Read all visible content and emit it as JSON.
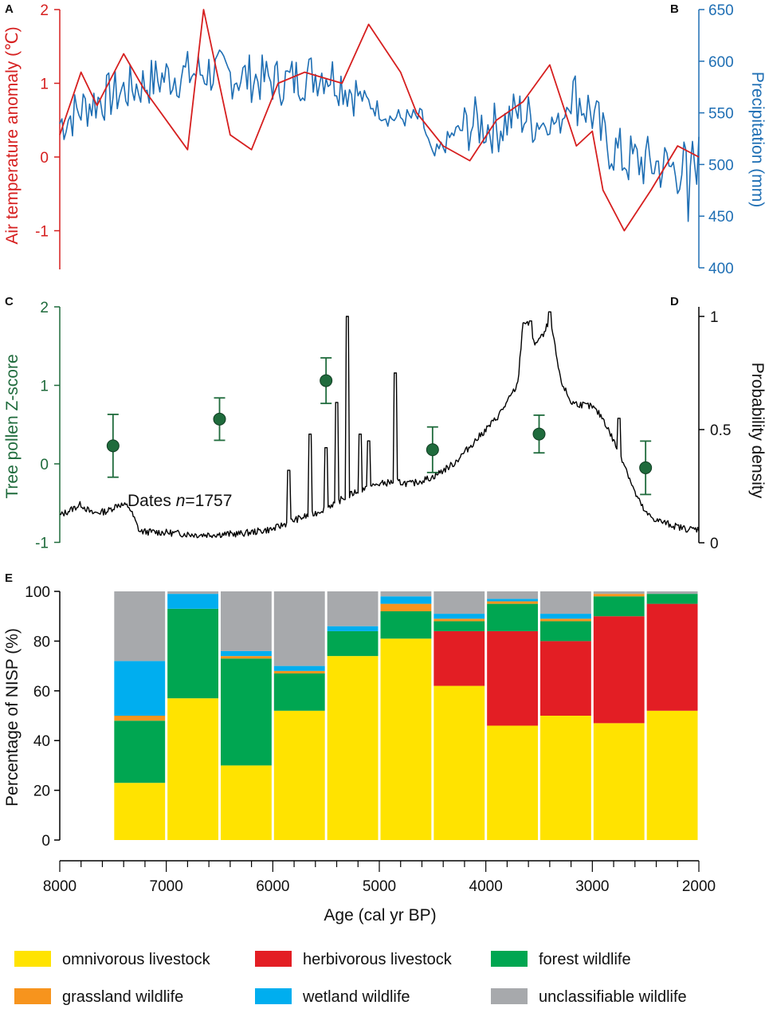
{
  "colors": {
    "temperature": "#d61f1f",
    "precipitation": "#1f6fb4",
    "pollen": "#1f6b3c",
    "density": "#000000",
    "omnivorous": "#ffe300",
    "herbivorous": "#e31e24",
    "forest": "#00a651",
    "grassland": "#f7941d",
    "wetland": "#00aeef",
    "unclassifiable": "#a7a9ac"
  },
  "chart_data": [
    {
      "panel": "A",
      "type": "line",
      "ylabel": "Air temperature anomaly (℃)",
      "ylim": [
        -1.5,
        2
      ],
      "yticks": [
        "-1",
        "0",
        "1",
        "2"
      ],
      "xlim": [
        8000,
        2000
      ],
      "x": [
        8000,
        7800,
        7650,
        7400,
        7200,
        6800,
        6650,
        6400,
        6200,
        5950,
        5700,
        5350,
        5100,
        4800,
        4650,
        4400,
        4150,
        3900,
        3650,
        3400,
        3150,
        3000,
        2900,
        2700,
        2450,
        2200,
        2000
      ],
      "y": [
        0.3,
        1.15,
        0.7,
        1.4,
        0.9,
        0.1,
        2.0,
        0.3,
        0.1,
        1.0,
        1.15,
        1.0,
        1.8,
        1.15,
        0.6,
        0.15,
        -0.05,
        0.5,
        0.75,
        1.25,
        0.15,
        0.35,
        -0.45,
        -1.0,
        -0.45,
        0.15,
        0.0
      ]
    },
    {
      "panel": "B",
      "type": "line",
      "ylabel": "Precipitation (mm)",
      "ylim": [
        400,
        650
      ],
      "yticks": [
        "400",
        "450",
        "500",
        "550",
        "600",
        "650"
      ],
      "xlim": [
        8000,
        2000
      ]
    },
    {
      "panel": "C",
      "type": "scatter",
      "ylabel": "Tree pollen Z-score",
      "ylim": [
        -1,
        2
      ],
      "yticks": [
        "-1",
        "0",
        "1",
        "2"
      ],
      "xlim": [
        8000,
        2000
      ],
      "x": [
        7500,
        6500,
        5500,
        4500,
        3500,
        2500
      ],
      "y": [
        0.23,
        0.57,
        1.06,
        0.18,
        0.38,
        -0.05
      ],
      "error": [
        0.4,
        0.27,
        0.29,
        0.29,
        0.24,
        0.34
      ]
    },
    {
      "panel": "D",
      "type": "line",
      "ylabel": "Probability density",
      "ylim": [
        0,
        1.05
      ],
      "yticks": [
        "0",
        "0.5",
        "1"
      ],
      "annotation_prefix": "Dates ",
      "annotation_n": "n",
      "annotation_value": "=1757",
      "xlim": [
        8000,
        2000
      ]
    },
    {
      "panel": "E",
      "type": "bar",
      "stacked": true,
      "ylabel": "Percentage of NISP (%)",
      "xlabel": "Age (cal yr BP)",
      "ylim": [
        0,
        100
      ],
      "yticks": [
        "0",
        "20",
        "40",
        "60",
        "80",
        "100"
      ],
      "xticks": [
        "8000",
        "7000",
        "6000",
        "5000",
        "4000",
        "3000",
        "2000"
      ],
      "categories": [
        "7500-7000",
        "7000-6500",
        "6500-6000",
        "6000-5500",
        "5500-5000",
        "5000-4500",
        "4500-4000",
        "4000-3500",
        "3500-3000",
        "3000-2500",
        "2500-2000"
      ],
      "series": [
        {
          "name": "omnivorous livestock",
          "values": [
            23,
            57,
            30,
            52,
            74,
            81,
            62,
            46,
            50,
            47,
            52
          ]
        },
        {
          "name": "herbivorous livestock",
          "values": [
            0,
            0,
            0,
            0,
            0,
            0,
            22,
            38,
            30,
            43,
            43
          ]
        },
        {
          "name": "forest wildlife",
          "values": [
            25,
            36,
            43,
            15,
            10,
            11,
            4,
            11,
            8,
            8,
            4
          ]
        },
        {
          "name": "grassland wildlife",
          "values": [
            2,
            0,
            1,
            1,
            0,
            3,
            1,
            1,
            1,
            1,
            0
          ]
        },
        {
          "name": "wetland wildlife",
          "values": [
            22,
            6,
            2,
            2,
            2,
            3,
            2,
            1,
            2,
            0,
            0
          ]
        },
        {
          "name": "unclassifiable wildlife",
          "values": [
            28,
            1,
            24,
            30,
            14,
            2,
            9,
            3,
            9,
            1,
            1
          ]
        }
      ]
    }
  ],
  "legend": [
    {
      "key": "omnivorous",
      "label": "omnivorous livestock"
    },
    {
      "key": "herbivorous",
      "label": "herbivorous livestock"
    },
    {
      "key": "forest",
      "label": "forest wildlife"
    },
    {
      "key": "grassland",
      "label": "grassland wildlife"
    },
    {
      "key": "wetland",
      "label": "wetland wildlife"
    },
    {
      "key": "unclassifiable",
      "label": "unclassifiable wildlife"
    }
  ]
}
